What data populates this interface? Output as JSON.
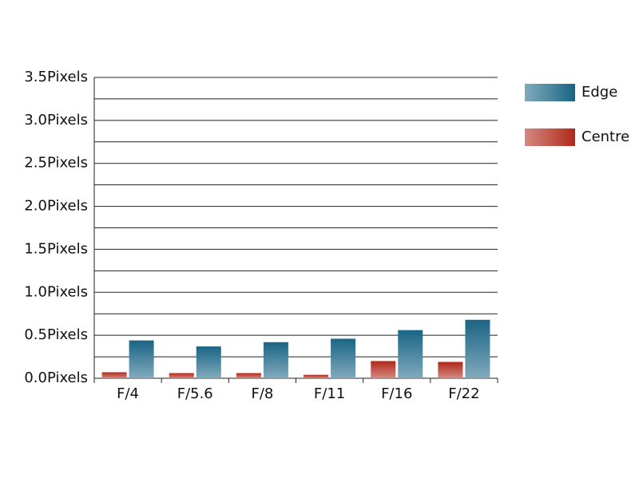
{
  "chart_data": {
    "type": "bar",
    "categories": [
      "F/4",
      "F/5.6",
      "F/8",
      "F/11",
      "F/16",
      "F/22"
    ],
    "series": [
      {
        "name": "Centre",
        "color": "#b0281a",
        "values": [
          0.07,
          0.06,
          0.06,
          0.04,
          0.2,
          0.19
        ]
      },
      {
        "name": "Edge",
        "color": "#1a6485",
        "values": [
          0.44,
          0.37,
          0.42,
          0.46,
          0.56,
          0.68
        ]
      }
    ],
    "legend_order": [
      "Edge",
      "Centre"
    ],
    "ylim": [
      0,
      3.5
    ],
    "yticks": [
      {
        "value": 0,
        "label": "0.0Pixels"
      },
      {
        "value": 0.5,
        "label": "0.5Pixels"
      },
      {
        "value": 1,
        "label": "1.0Pixels"
      },
      {
        "value": 1.5,
        "label": "1.5Pixels"
      },
      {
        "value": 2,
        "label": "2.0Pixels"
      },
      {
        "value": 2.5,
        "label": "2.5Pixels"
      },
      {
        "value": 3,
        "label": "3.0Pixels"
      },
      {
        "value": 3.5,
        "label": "3.5Pixels"
      }
    ],
    "yminorticks": [
      0.25,
      0.75,
      1.25,
      1.75,
      2.25,
      2.75,
      3.25
    ],
    "grid": true,
    "legend": "right"
  }
}
